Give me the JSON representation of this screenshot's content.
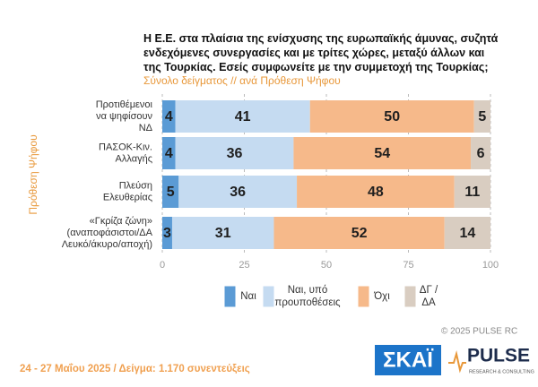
{
  "chart_data": {
    "type": "stacked_barh",
    "title": "Η Ε.Ε. στα πλαίσια της ενίσχυσης της ευρωπαϊκής άμυνας, συζητά\nενδεχόμενες συνεργασίες και με τρίτες χώρες, μεταξύ άλλων και\nτης Τουρκίας. Εσείς συμφωνείτε με την συμμετοχή της Τουρκίας;",
    "subtitle": "Σύνολο δείγματος // ανά Πρόθεση Ψήφου",
    "y_label": "Πρόθεση Ψήφου",
    "categories": [
      "Προτιθέμενοι\nνα ψηφίσουν\nΝΔ",
      "ΠΑΣΟΚ-Κιν.\nΑλλαγής",
      "Πλεύση\nΕλευθερίας",
      "«Γκρίζα ζώνη»\n(αναποφάσιστοι/ΔΑ\nΛευκό/άκυρο/αποχή)"
    ],
    "series": [
      {
        "name": "Ναι",
        "color": "#5b9bd5",
        "values": [
          4,
          4,
          5,
          3
        ]
      },
      {
        "name": "Ναι, υπό\nπρουποθέσεις",
        "color": "#c5dbf1",
        "values": [
          41,
          36,
          36,
          31
        ]
      },
      {
        "name": "Όχι",
        "color": "#f6b98a",
        "values": [
          50,
          54,
          48,
          52
        ]
      },
      {
        "name": "ΔΓ /\nΔΑ",
        "color": "#d9cdc1",
        "values": [
          5,
          6,
          11,
          14
        ]
      }
    ],
    "xlim": [
      0,
      100
    ],
    "xticks": [
      0,
      25,
      50,
      75,
      100
    ],
    "grid": true
  },
  "source": "24 - 27 Μαΐου 2025  /  Δείγμα:  1.170 συνεντεύξεις",
  "copyright": "© 2025 PULSE RC",
  "logo_skai": "ΣΚΑΪ",
  "logo_pulse": "PULSE",
  "logo_pulse_sub": "RESEARCH & CONSULTING"
}
